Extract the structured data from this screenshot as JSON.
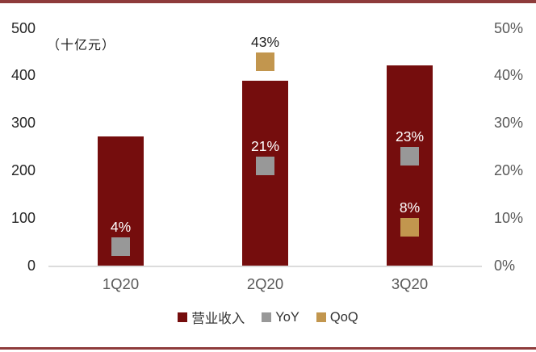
{
  "chart_data": {
    "type": "bar",
    "title": "",
    "unit_label": "（十亿元）",
    "categories": [
      "1Q20",
      "2Q20",
      "3Q20"
    ],
    "series": [
      {
        "name": "营业收入",
        "kind": "bar",
        "axis": "left",
        "color": "#750D0D",
        "values": [
          272,
          390,
          421
        ]
      },
      {
        "name": "YoY",
        "kind": "square-marker",
        "axis": "right",
        "color": "#989898",
        "values": [
          4,
          21,
          23
        ],
        "labels": [
          "4%",
          "21%",
          "23%"
        ]
      },
      {
        "name": "QoQ",
        "kind": "square-marker",
        "axis": "right",
        "color": "#C2964E",
        "values": [
          null,
          43,
          8
        ],
        "labels": [
          null,
          "43%",
          "8%"
        ]
      }
    ],
    "left_axis": {
      "min": 0,
      "max": 500,
      "tick_labels": [
        "500",
        "400",
        "300",
        "200",
        "100",
        "0"
      ]
    },
    "right_axis": {
      "min": 0,
      "max": 50,
      "tick_labels": [
        "50%",
        "40%",
        "30%",
        "20%",
        "10%",
        "0%"
      ]
    },
    "legend": {
      "position": "bottom",
      "items": [
        "营业收入",
        "YoY",
        "QoQ"
      ]
    },
    "grid": false
  },
  "colors": {
    "bar": "#750D0D",
    "yoy_marker": "#989898",
    "qoq_marker": "#C2964E",
    "frame_line": "#8E3B3B",
    "axis_line": "#DCDCDC",
    "left_tick_text": "#262626",
    "right_tick_text": "#595959",
    "category_text": "#595959",
    "data_label_light": "#FFFFFF",
    "data_label_dark": "#1F1F1F"
  }
}
